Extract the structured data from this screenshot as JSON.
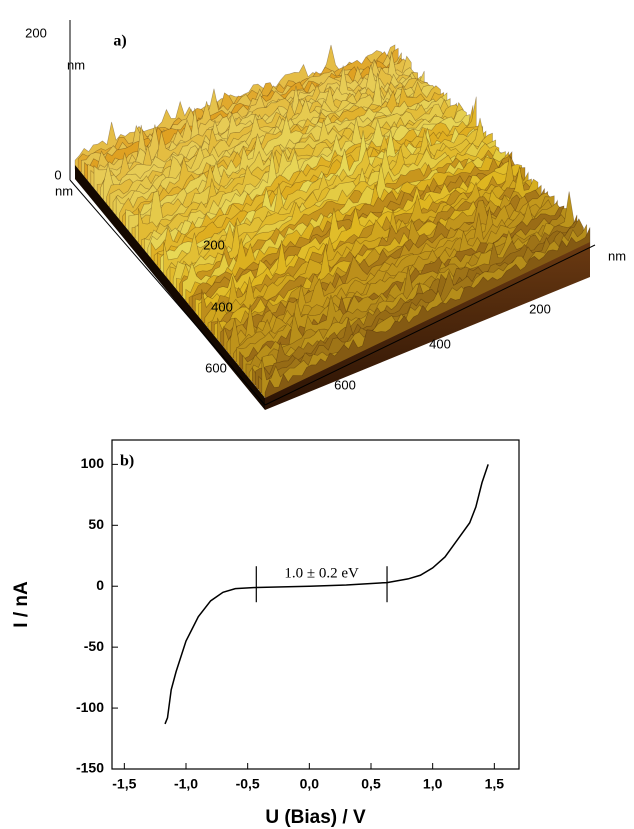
{
  "chart_data": [
    {
      "type": "surface",
      "label": "a)",
      "zticks": [
        0,
        200
      ],
      "zlabel": "nm",
      "yticks": [
        200,
        400,
        600
      ],
      "ylabel": "nm",
      "xticks": [
        200,
        400,
        600
      ],
      "xlabel": "nm"
    },
    {
      "type": "line",
      "label": "b)",
      "xlabel": "U (Bias) / V",
      "ylabel": "I / nA",
      "annotation": "1.0 ± 0.2 eV",
      "markers": [
        -0.43,
        0.63
      ],
      "x": [
        -1.17,
        -1.15,
        -1.12,
        -1.08,
        -1.0,
        -0.95,
        -0.9,
        -0.8,
        -0.7,
        -0.6,
        -0.43,
        0,
        0.3,
        0.63,
        0.8,
        0.9,
        1.0,
        1.1,
        1.2,
        1.3,
        1.35,
        1.4,
        1.45
      ],
      "series": [
        {
          "color": "#000000",
          "values": [
            -113,
            -108,
            -85,
            -70,
            -45,
            -35,
            -25,
            -12,
            -5,
            -2,
            -1,
            0,
            1,
            3,
            6,
            9,
            15,
            24,
            38,
            52,
            65,
            85,
            100
          ]
        }
      ],
      "xlim": [
        -1.6,
        1.7
      ],
      "ylim": [
        -150,
        120
      ],
      "xticks": [
        {
          "value": -1.5,
          "label": "-1,5"
        },
        {
          "value": -1.0,
          "label": "-1,0"
        },
        {
          "value": -0.5,
          "label": "-0,5"
        },
        {
          "value": 0,
          "label": "0,0"
        },
        {
          "value": 0.5,
          "label": "0,5"
        },
        {
          "value": 1.0,
          "label": "1,0"
        },
        {
          "value": 1.5,
          "label": "1,5"
        }
      ],
      "yticks": [
        100,
        50,
        0,
        -50,
        -100,
        -150
      ]
    }
  ]
}
